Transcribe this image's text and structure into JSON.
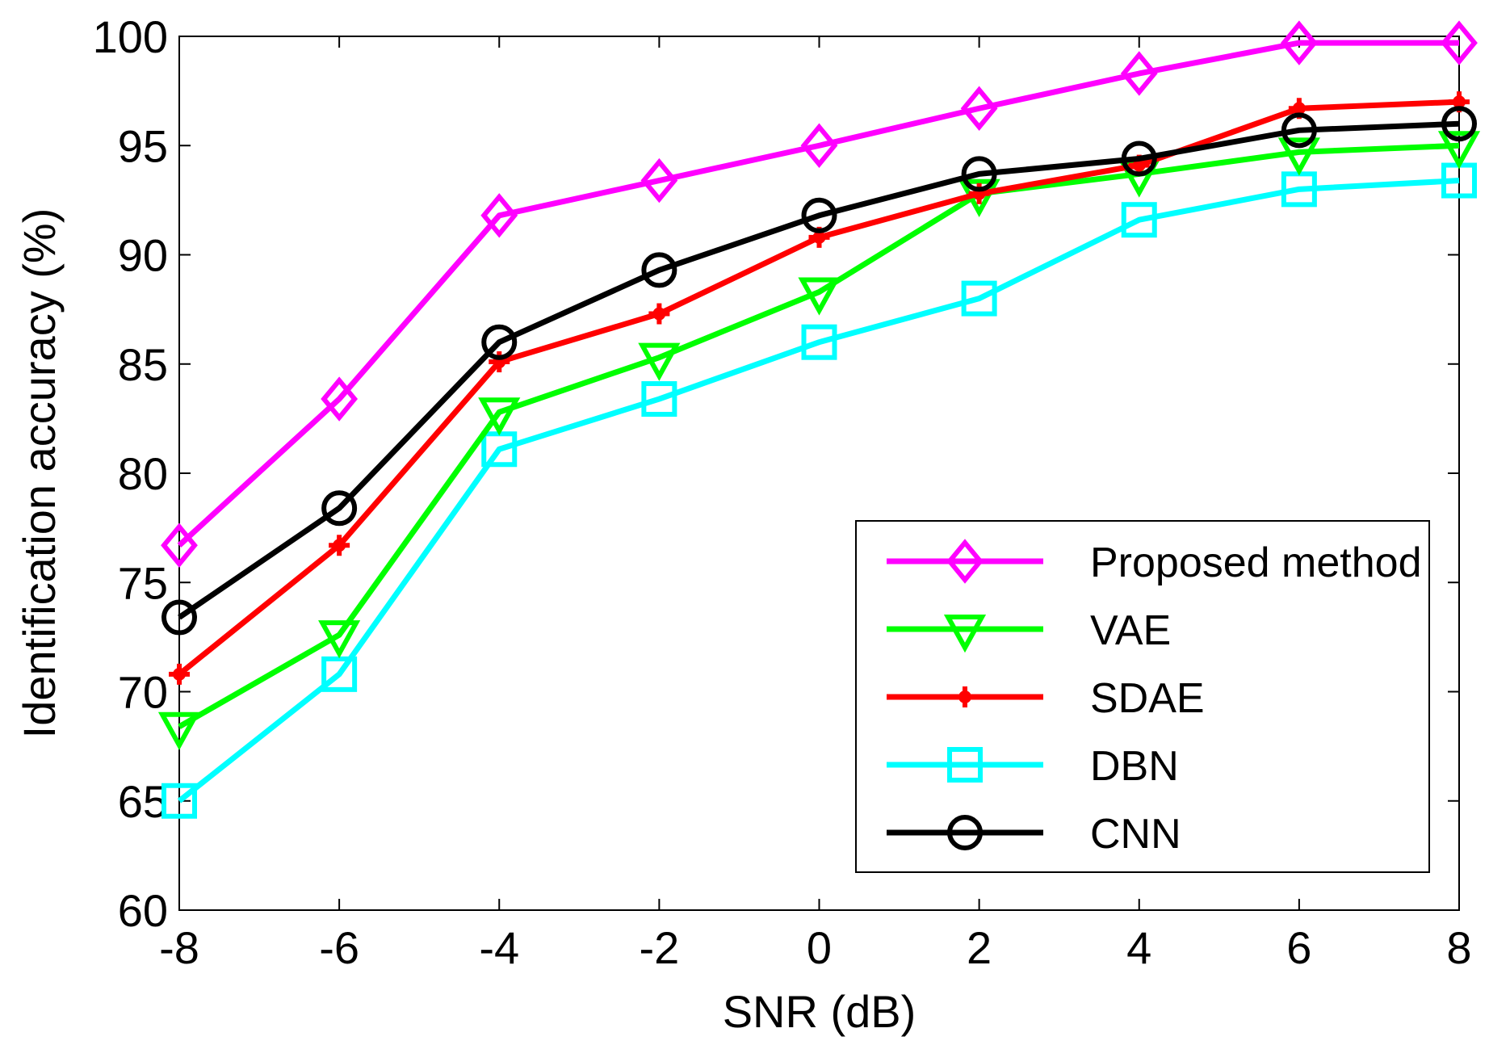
{
  "chart_data": {
    "type": "line",
    "title": "",
    "xlabel": "SNR (dB)",
    "ylabel": "Identification accuracy (%)",
    "x": [
      -8,
      -6,
      -4,
      -2,
      0,
      2,
      4,
      6,
      8
    ],
    "xticks": [
      "-8",
      "-6",
      "-4",
      "-2",
      "0",
      "2",
      "4",
      "6",
      "8"
    ],
    "yticks": [
      "60",
      "65",
      "70",
      "75",
      "80",
      "85",
      "90",
      "95",
      "100"
    ],
    "xlim": [
      -8,
      8
    ],
    "ylim": [
      60,
      100
    ],
    "grid": false,
    "legend_position": "lower-right",
    "series": [
      {
        "name": "Proposed method",
        "marker": "diamond",
        "color": "#ff00ff",
        "values": [
          76.7,
          83.4,
          91.8,
          93.4,
          95.0,
          96.7,
          98.3,
          99.7,
          99.7
        ]
      },
      {
        "name": "VAE",
        "marker": "triangle-down",
        "color": "#00ff00",
        "values": [
          68.4,
          72.6,
          82.8,
          85.3,
          88.3,
          92.8,
          93.7,
          94.7,
          95.0
        ]
      },
      {
        "name": "SDAE",
        "marker": "plus",
        "color": "#ff0000",
        "values": [
          70.8,
          76.7,
          85.1,
          87.3,
          90.8,
          92.8,
          94.1,
          96.7,
          97.0
        ]
      },
      {
        "name": "DBN",
        "marker": "square",
        "color": "#00ffff",
        "values": [
          65.0,
          70.8,
          81.1,
          83.4,
          86.0,
          88.0,
          91.6,
          93.0,
          93.4
        ]
      },
      {
        "name": "CNN",
        "marker": "circle",
        "color": "#000000",
        "values": [
          73.4,
          78.4,
          86.0,
          89.3,
          91.8,
          93.7,
          94.4,
          95.7,
          96.0
        ]
      }
    ]
  }
}
